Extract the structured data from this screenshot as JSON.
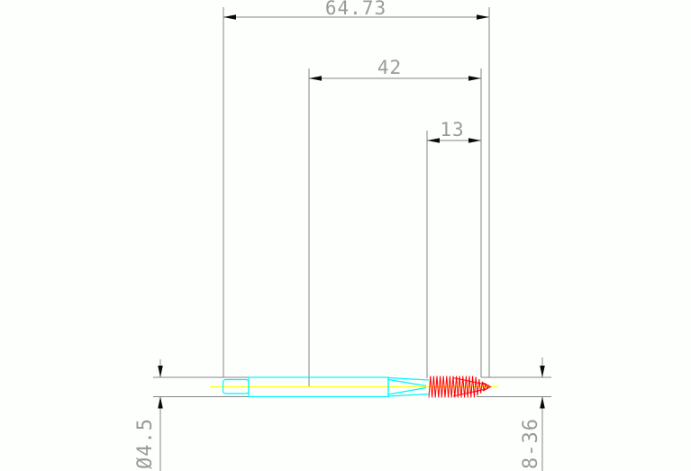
{
  "drawing": {
    "description": "2D CAD technical drawing of a machine tap (side view) with dimension annotations",
    "dimensions": {
      "overall_length": {
        "label": "64.73",
        "value": 64.73
      },
      "front_length": {
        "label": "42",
        "value": 42
      },
      "thread_length": {
        "label": "13",
        "value": 13
      },
      "shank_diameter": {
        "label": "Ø4.5",
        "value": 4.5
      },
      "thread_size": {
        "label": "8-36"
      }
    },
    "colors": {
      "outline": "#00f2ff",
      "thread": "#ff0000",
      "centerline": "#ffff00",
      "dimension": "#858585",
      "text": "#9a9a9a",
      "arrow": "#0a0a0a",
      "background": "#fdfffd"
    }
  }
}
